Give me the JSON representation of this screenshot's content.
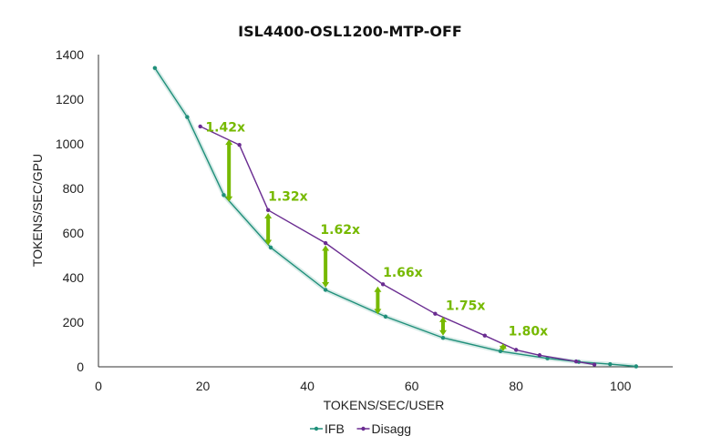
{
  "chart_data": {
    "type": "line",
    "title": "ISL4400-OSL1200-MTP-OFF",
    "xlabel": "TOKENS/SEC/USER",
    "ylabel": "TOKENS/SEC/GPU",
    "xlim": [
      0,
      110
    ],
    "ylim": [
      0,
      1400
    ],
    "xticks": [
      "0",
      "20",
      "40",
      "60",
      "80",
      "100"
    ],
    "yticks": [
      "0",
      "200",
      "400",
      "600",
      "800",
      "1000",
      "1200",
      "1400"
    ],
    "legend_position": "bottom-center",
    "series": [
      {
        "name": "IFB",
        "color": "#1f8f7a",
        "points": [
          [
            10.8,
            1340
          ],
          [
            17,
            1120
          ],
          [
            24,
            770
          ],
          [
            33,
            535
          ],
          [
            43.5,
            345
          ],
          [
            55,
            225
          ],
          [
            66,
            130
          ],
          [
            77,
            70
          ],
          [
            86,
            38
          ],
          [
            92,
            22
          ],
          [
            98,
            12
          ],
          [
            103,
            2
          ]
        ]
      },
      {
        "name": "Disagg",
        "color": "#6a2c91",
        "points": [
          [
            19.5,
            1078
          ],
          [
            27,
            995
          ],
          [
            32.5,
            703
          ],
          [
            43.5,
            555
          ],
          [
            54.5,
            370
          ],
          [
            64.5,
            238
          ],
          [
            74,
            140
          ],
          [
            80,
            76
          ],
          [
            84.5,
            52
          ],
          [
            91.5,
            24
          ],
          [
            95,
            10
          ]
        ]
      }
    ],
    "annotations": [
      {
        "label": "1.42x",
        "x": 25,
        "y_low": 740,
        "y_high": 1020,
        "text_x": 20.5,
        "text_y": 1055
      },
      {
        "label": "1.32x",
        "x": 32.5,
        "y_low": 545,
        "y_high": 690,
        "text_x": 32.5,
        "text_y": 745
      },
      {
        "label": "1.62x",
        "x": 43.5,
        "y_low": 355,
        "y_high": 545,
        "text_x": 42.5,
        "text_y": 595
      },
      {
        "label": "1.66x",
        "x": 53.5,
        "y_low": 235,
        "y_high": 360,
        "text_x": 54.5,
        "text_y": 405
      },
      {
        "label": "1.75x",
        "x": 66,
        "y_low": 140,
        "y_high": 225,
        "text_x": 66.5,
        "text_y": 255
      },
      {
        "label": "1.80x",
        "x": 77.5,
        "y_low": 70,
        "y_high": 105,
        "text_x": 78.5,
        "text_y": 140
      }
    ]
  }
}
